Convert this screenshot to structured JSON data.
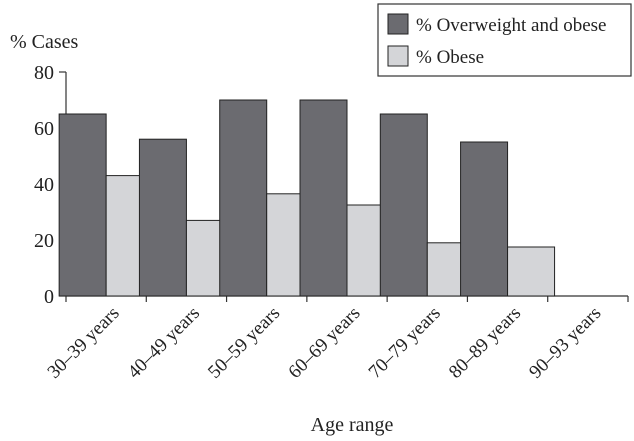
{
  "chart_data": {
    "type": "bar",
    "title": "",
    "xlabel": "Age range",
    "ylabel": "% Cases",
    "ylim": [
      0,
      80
    ],
    "yticks": [
      0,
      20,
      40,
      60,
      80
    ],
    "grid": false,
    "legend_position": "top-right",
    "categories": [
      "30–39 years",
      "40–49 years",
      "50–59 years",
      "60–69 years",
      "70–79 years",
      "80–89 years",
      "90–93 years"
    ],
    "series": [
      {
        "name": "% Overweight and obese",
        "color": "#6b6b70",
        "values": [
          65,
          56,
          70,
          70,
          65,
          55,
          0
        ]
      },
      {
        "name": "% Obese",
        "color": "#d4d5d8",
        "values": [
          43,
          27,
          36.5,
          32.5,
          19,
          17.5,
          0
        ]
      }
    ]
  }
}
